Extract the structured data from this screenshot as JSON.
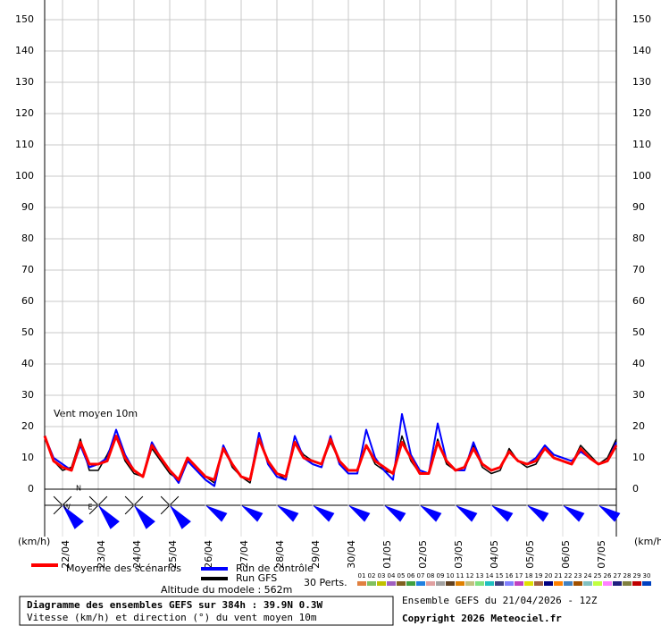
{
  "chart_data": {
    "type": "line",
    "title": "Diagramme des ensembles GEFS sur 384h : 39.9N 0.3W",
    "subtitle": "Vitesse (km/h) et direction (°) du vent moyen 10m",
    "annotation": "Vent moyen 10m",
    "y_unit": "(km/h)",
    "altitude": "Altitude du modele : 562m",
    "run_info": "Ensemble GEFS du 21/04/2026 - 12Z",
    "copyright": "Copyright 2026 Meteociel.fr",
    "compass": [
      "N",
      "W",
      "E"
    ],
    "ylim": [
      0,
      150
    ],
    "yticks": [
      0,
      10,
      20,
      30,
      40,
      50,
      60,
      70,
      80,
      90,
      100,
      110,
      120,
      130,
      140,
      150
    ],
    "grid": true,
    "categories": [
      null,
      null,
      "22/04",
      null,
      null,
      null,
      "23/04",
      null,
      null,
      null,
      "24/04",
      null,
      null,
      null,
      "25/04",
      null,
      null,
      null,
      "26/04",
      null,
      null,
      null,
      "27/04",
      null,
      null,
      null,
      "28/04",
      null,
      null,
      null,
      "29/04",
      null,
      null,
      null,
      "30/04",
      null,
      null,
      null,
      "01/05",
      null,
      null,
      null,
      "02/05",
      null,
      null,
      null,
      "03/05",
      null,
      null,
      null,
      "04/05",
      null,
      null,
      null,
      "05/05",
      null,
      null,
      null,
      "06/05",
      null,
      null,
      null,
      "07/05",
      null,
      null
    ],
    "series": [
      {
        "name": "Moyenne des scénarios",
        "color": "#ff0000",
        "width": 3,
        "values": [
          17,
          9,
          7,
          6,
          15,
          8,
          8,
          9,
          17,
          10,
          6,
          4,
          14,
          10,
          6,
          3,
          10,
          7,
          4,
          3,
          13,
          8,
          4,
          3,
          16,
          9,
          5,
          4,
          15,
          10,
          9,
          8,
          16,
          9,
          6,
          6,
          14,
          9,
          7,
          5,
          15,
          10,
          5,
          5,
          15,
          9,
          6,
          7,
          13,
          8,
          6,
          7,
          12,
          9,
          8,
          9,
          13,
          10,
          9,
          8,
          13,
          10,
          8,
          9,
          14
        ]
      },
      {
        "name": "Run de contrôle",
        "color": "#0000ff",
        "width": 2,
        "values": [
          17,
          10,
          8,
          6,
          14,
          7,
          8,
          10,
          19,
          11,
          6,
          4,
          15,
          10,
          6,
          2,
          9,
          6,
          3,
          1,
          14,
          8,
          4,
          3,
          18,
          8,
          4,
          3,
          17,
          10,
          8,
          7,
          17,
          8,
          5,
          5,
          19,
          10,
          6,
          3,
          24,
          11,
          6,
          5,
          21,
          9,
          6,
          6,
          15,
          8,
          6,
          7,
          12,
          9,
          8,
          10,
          14,
          11,
          10,
          9,
          12,
          10,
          8,
          9,
          15
        ]
      },
      {
        "name": "Run GFS",
        "color": "#000000",
        "width": 1.5,
        "values": [
          17,
          9,
          6,
          7,
          16,
          6,
          6,
          11,
          17,
          9,
          5,
          4,
          13,
          9,
          5,
          3,
          10,
          7,
          4,
          2,
          14,
          7,
          4,
          2,
          16,
          9,
          5,
          3,
          15,
          11,
          9,
          8,
          15,
          9,
          6,
          6,
          14,
          8,
          6,
          5,
          17,
          9,
          5,
          5,
          16,
          8,
          6,
          6,
          14,
          7,
          5,
          6,
          13,
          9,
          7,
          8,
          13,
          10,
          9,
          8,
          14,
          11,
          8,
          10,
          16
        ]
      }
    ],
    "perturbations": {
      "label": "30 Perts.",
      "members": [
        {
          "name": "01",
          "color": "#e08040"
        },
        {
          "name": "02",
          "color": "#80c060"
        },
        {
          "name": "03",
          "color": "#c0c000"
        },
        {
          "name": "04",
          "color": "#a060c0"
        },
        {
          "name": "05",
          "color": "#806020"
        },
        {
          "name": "06",
          "color": "#40a040"
        },
        {
          "name": "07",
          "color": "#2080e0"
        },
        {
          "name": "08",
          "color": "#e0a0a0"
        },
        {
          "name": "09",
          "color": "#a0a0a0"
        },
        {
          "name": "10",
          "color": "#604020"
        },
        {
          "name": "11",
          "color": "#e08000"
        },
        {
          "name": "12",
          "color": "#c0c080"
        },
        {
          "name": "13",
          "color": "#80e080"
        },
        {
          "name": "14",
          "color": "#20c0c0"
        },
        {
          "name": "15",
          "color": "#404080"
        },
        {
          "name": "16",
          "color": "#8080ff"
        },
        {
          "name": "17",
          "color": "#c040c0"
        },
        {
          "name": "18",
          "color": "#e0e000"
        },
        {
          "name": "19",
          "color": "#a06040"
        },
        {
          "name": "20",
          "color": "#000080"
        },
        {
          "name": "21",
          "color": "#ff8000"
        },
        {
          "name": "22",
          "color": "#4080c0"
        },
        {
          "name": "23",
          "color": "#a05000"
        },
        {
          "name": "24",
          "color": "#80c0c0"
        },
        {
          "name": "25",
          "color": "#c0ff40"
        },
        {
          "name": "26",
          "color": "#ff80ff"
        },
        {
          "name": "27",
          "color": "#202080"
        },
        {
          "name": "28",
          "color": "#808040"
        },
        {
          "name": "29",
          "color": "#c00000"
        },
        {
          "name": "30",
          "color": "#0040c0"
        }
      ]
    }
  }
}
